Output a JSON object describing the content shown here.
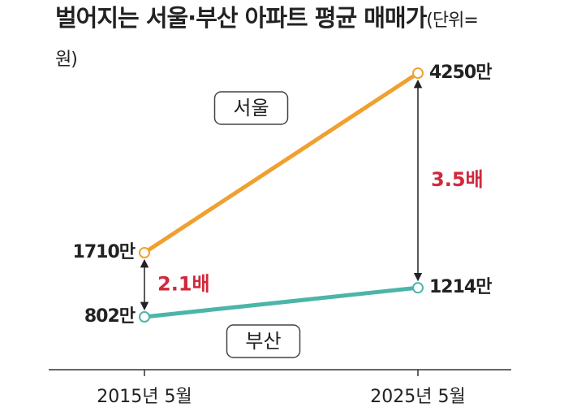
{
  "chart_data": {
    "type": "line",
    "title": "벌어지는 서울·부산 아파트 평균 매매가",
    "subtitle": "(단위=원)",
    "categories": [
      "2015년 5월",
      "2025년 5월"
    ],
    "series": [
      {
        "name": "서울",
        "color": "#f0a030",
        "values": [
          1710,
          4250
        ],
        "value_labels": [
          "1710만",
          "4250만"
        ]
      },
      {
        "name": "부산",
        "color": "#4bb5a8",
        "values": [
          802,
          1214
        ],
        "value_labels": [
          "802만",
          "1214만"
        ]
      }
    ],
    "annotations": [
      "2.1배",
      "3.5배"
    ],
    "annotation_color": "#d0283c"
  }
}
